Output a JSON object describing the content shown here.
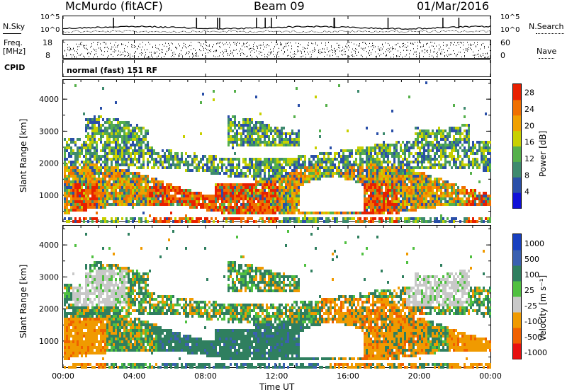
{
  "header": {
    "station": "McMurdo (fitACF)",
    "beam": "Beam 09",
    "date": "01/Mar/2016"
  },
  "top_panels": {
    "nsky_label": "N.Sky",
    "nsky_ticks": [
      "10^5",
      "10^0"
    ],
    "nsearch_label": "N.Search",
    "nsearch_ticks": [
      "10^5",
      "10^0"
    ],
    "freq_label": "Freq.",
    "freq_unit": "[MHz]",
    "freq_ticks": [
      "18",
      "8"
    ],
    "nave_label": "Nave",
    "nave_ticks": [
      "60",
      "0"
    ],
    "cpid_label": "CPID",
    "cpid_value": "normal (fast) 151 RF"
  },
  "colors": {
    "power": [
      "#1010d8",
      "#2a4fa8",
      "#3e8a6e",
      "#55b04a",
      "#c8d000",
      "#f0a000",
      "#f07000",
      "#e82000"
    ],
    "velocity": [
      "#e81010",
      "#f06000",
      "#f09a00",
      "#c8c8c8",
      "#50c040",
      "#2f7f5f",
      "#3a60b0",
      "#1840c0"
    ]
  },
  "chart_data": [
    {
      "type": "heatmap",
      "title": "Power",
      "ylabel": "Slant Range [km]",
      "ylim": [
        180,
        4600
      ],
      "yticks": [
        "4000",
        "3000",
        "2000",
        "1000"
      ],
      "xlabel": "Time UT",
      "xticks": [
        "00:00",
        "04:00",
        "08:00",
        "12:00",
        "16:00",
        "20:00",
        "00:00"
      ],
      "colorbar_label": "Power [dB]",
      "colorbar_ticks": [
        "28",
        "24",
        "20",
        "16",
        "12",
        "8",
        "4"
      ],
      "colorbar_range": [
        0,
        30
      ]
    },
    {
      "type": "heatmap",
      "title": "Velocity",
      "ylabel": "Slant Range [km]",
      "ylim": [
        180,
        4600
      ],
      "yticks": [
        "4000",
        "3000",
        "2000",
        "1000"
      ],
      "xlabel": "Time UT",
      "xticks": [
        "00:00",
        "04:00",
        "08:00",
        "12:00",
        "16:00",
        "20:00",
        "00:00"
      ],
      "colorbar_label": "Velocity [m s⁻¹]",
      "colorbar_ticks": [
        "1000",
        "500",
        "100",
        "25",
        "-25",
        "-100",
        "-500",
        "-1000"
      ]
    }
  ]
}
